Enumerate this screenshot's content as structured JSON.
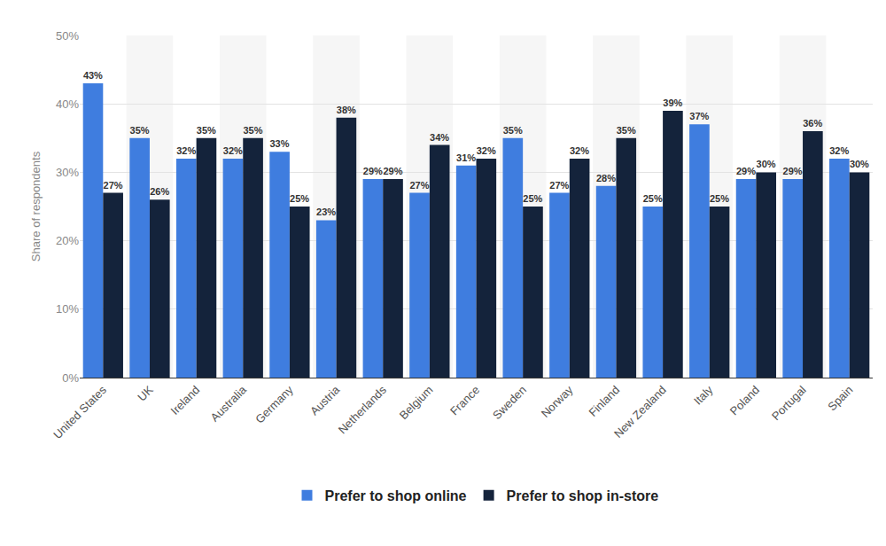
{
  "chart_data": {
    "type": "bar",
    "y_label": "Share of respondents",
    "categories": [
      "United States",
      "UK",
      "Ireland",
      "Australia",
      "Germany",
      "Austria",
      "Netherlands",
      "Belgium",
      "France",
      "Sweden",
      "Norway",
      "Finland",
      "New Zealand",
      "Italy",
      "Poland",
      "Portugal",
      "Spain"
    ],
    "series": [
      {
        "name": "Prefer to shop online",
        "color": "#3f7ddf",
        "values": [
          43,
          35,
          32,
          32,
          33,
          23,
          29,
          27,
          31,
          35,
          27,
          28,
          25,
          37,
          29,
          29,
          32
        ],
        "value_labels": [
          "43%",
          "35%",
          "32%",
          "32%",
          "33%",
          "23%",
          "29%",
          "27%",
          "31%",
          "35%",
          "27%",
          "28%",
          "25%",
          "37%",
          "29%",
          "29%",
          "32%"
        ]
      },
      {
        "name": "Prefer to shop in-store",
        "color": "#14233b",
        "values": [
          27,
          26,
          35,
          35,
          25,
          38,
          29,
          34,
          32,
          25,
          32,
          35,
          39,
          25,
          30,
          36,
          30
        ],
        "value_labels": [
          "27%",
          "26%",
          "35%",
          "35%",
          "25%",
          "38%",
          "29%",
          "34%",
          "32%",
          "25%",
          "32%",
          "35%",
          "39%",
          "25%",
          "30%",
          "36%",
          "30%"
        ]
      }
    ],
    "ylim": [
      0,
      50
    ],
    "yticks": [
      {
        "value": 0,
        "label": "0%"
      },
      {
        "value": 10,
        "label": "10%"
      },
      {
        "value": 20,
        "label": "20%"
      },
      {
        "value": 30,
        "label": "30%"
      },
      {
        "value": 40,
        "label": "40%"
      },
      {
        "value": 50,
        "label": "50%"
      }
    ],
    "grid": true,
    "legend": "bottom",
    "data_labels": true
  }
}
